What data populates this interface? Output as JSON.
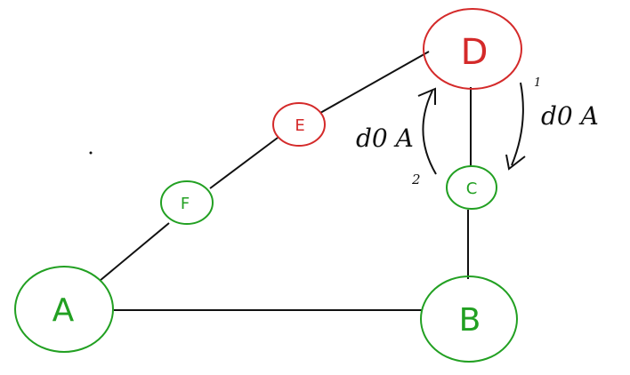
{
  "nodes": [
    {
      "id": "A",
      "label": "A",
      "color": "#22a022",
      "status": "green"
    },
    {
      "id": "B",
      "label": "B",
      "color": "#22a022",
      "status": "green"
    },
    {
      "id": "C",
      "label": "C",
      "color": "#22a022",
      "status": "green"
    },
    {
      "id": "D",
      "label": "D",
      "color": "#d42a2a",
      "status": "red"
    },
    {
      "id": "E",
      "label": "E",
      "color": "#d42a2a",
      "status": "red"
    },
    {
      "id": "F",
      "label": "F",
      "color": "#22a022",
      "status": "green"
    }
  ],
  "edges": [
    {
      "from": "A",
      "to": "B"
    },
    {
      "from": "A",
      "to": "F"
    },
    {
      "from": "F",
      "to": "E"
    },
    {
      "from": "E",
      "to": "D"
    },
    {
      "from": "D",
      "to": "C"
    },
    {
      "from": "C",
      "to": "B"
    }
  ],
  "annotations": {
    "step1_number": "1",
    "step1_text": "d0 A",
    "step2_number": "2",
    "step2_text": "d0 A"
  },
  "colors": {
    "line": "#111111",
    "annotation": "#111111"
  }
}
